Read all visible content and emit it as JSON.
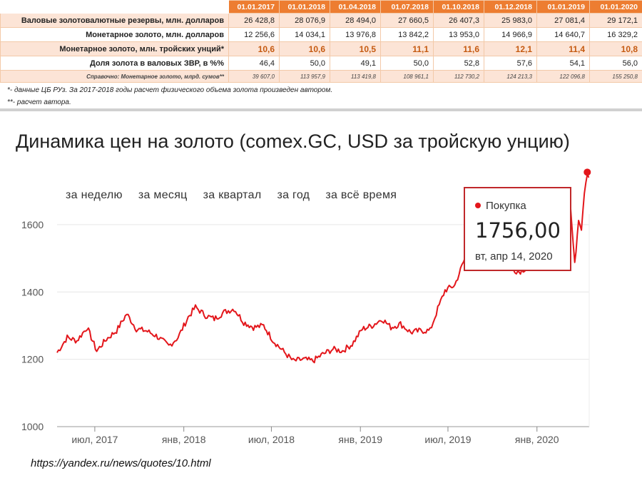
{
  "table": {
    "headers": [
      "01.01.2017",
      "01.01.2018",
      "01.04.2018",
      "01.07.2018",
      "01.10.2018",
      "01.12.2018",
      "01.01.2019",
      "01.01.2020"
    ],
    "rows": [
      {
        "label": "Валовые золотовалютные резервы, млн. долларов",
        "values": [
          "26 428,8",
          "28 076,9",
          "28 494,0",
          "27 660,5",
          "26 407,3",
          "25 983,0",
          "27 081,4",
          "29 172,1"
        ]
      },
      {
        "label": "Монетарное золото, млн. долларов",
        "values": [
          "12 256,6",
          "14 034,1",
          "13 976,8",
          "13 842,2",
          "13 953,0",
          "14 966,9",
          "14 640,7",
          "16 329,2"
        ]
      },
      {
        "label": "Монетарное золото, млн. тройских унций*",
        "values": [
          "10,6",
          "10,6",
          "10,5",
          "11,1",
          "11,6",
          "12,1",
          "11,4",
          "10,8"
        ]
      },
      {
        "label": "Доля золота в валовых ЗВР, в %%",
        "values": [
          "46,4",
          "50,0",
          "49,1",
          "50,0",
          "52,8",
          "57,6",
          "54,1",
          "56,0"
        ]
      },
      {
        "label": "Справочно: Монетарное золото, млрд. сумов**",
        "values": [
          "39 607,0",
          "113 957,9",
          "113 419,8",
          "108 961,1",
          "112 730,2",
          "124 213,3",
          "122 096,8",
          "155 250,8"
        ]
      }
    ],
    "footnotes": [
      "*- данные ЦБ РУз. За 2017-2018 годы расчет физического объема золота произведен автором.",
      "**- расчет автора."
    ]
  },
  "chart_header": "Динамика цен на золото (comex.GC, USD за тройскую унцию)",
  "period_tabs": [
    "за неделю",
    "за месяц",
    "за квартал",
    "за год",
    "за всё время"
  ],
  "tooltip": {
    "series": "Покупка",
    "value": "1756,00",
    "date": "вт, апр 14, 2020"
  },
  "source": "https://yandex.ru/news/quotes/10.html",
  "chart_data": {
    "type": "line",
    "x_ticks": [
      "июл, 2017",
      "янв, 2018",
      "июл, 2018",
      "янв, 2019",
      "июл, 2019",
      "янв, 2020"
    ],
    "y_ticks": [
      1000,
      1200,
      1400,
      1600
    ],
    "ylim": [
      1000,
      1780
    ],
    "xlim": [
      "2017-04-14",
      "2020-04-18"
    ],
    "line_color": "#e3161b",
    "series": [
      {
        "name": "Покупка",
        "x": [
          "2017-04-14",
          "2017-05-05",
          "2017-05-25",
          "2017-06-15",
          "2017-07-05",
          "2017-07-25",
          "2017-08-15",
          "2017-09-05",
          "2017-09-25",
          "2017-10-15",
          "2017-11-05",
          "2017-12-01",
          "2017-12-20",
          "2018-01-10",
          "2018-01-25",
          "2018-02-15",
          "2018-03-05",
          "2018-03-25",
          "2018-04-15",
          "2018-05-05",
          "2018-05-25",
          "2018-06-15",
          "2018-07-05",
          "2018-07-25",
          "2018-08-15",
          "2018-09-05",
          "2018-09-25",
          "2018-10-15",
          "2018-11-05",
          "2018-11-25",
          "2018-12-15",
          "2019-01-05",
          "2019-01-25",
          "2019-02-15",
          "2019-03-05",
          "2019-03-25",
          "2019-04-15",
          "2019-05-05",
          "2019-05-25",
          "2019-06-10",
          "2019-06-25",
          "2019-07-15",
          "2019-08-05",
          "2019-08-25",
          "2019-09-05",
          "2019-09-25",
          "2019-10-15",
          "2019-11-05",
          "2019-11-25",
          "2019-12-15",
          "2020-01-08",
          "2020-01-25",
          "2020-02-10",
          "2020-02-24",
          "2020-03-09",
          "2020-03-19",
          "2020-03-27",
          "2020-04-02",
          "2020-04-08",
          "2020-04-14",
          "2020-04-17"
        ],
        "y": [
          1220,
          1265,
          1255,
          1295,
          1225,
          1260,
          1285,
          1335,
          1290,
          1285,
          1270,
          1240,
          1265,
          1325,
          1355,
          1330,
          1320,
          1340,
          1350,
          1310,
          1295,
          1300,
          1255,
          1225,
          1195,
          1200,
          1195,
          1215,
          1230,
          1225,
          1245,
          1290,
          1300,
          1320,
          1295,
          1305,
          1280,
          1285,
          1285,
          1350,
          1405,
          1420,
          1500,
          1535,
          1560,
          1500,
          1490,
          1470,
          1460,
          1475,
          1550,
          1565,
          1580,
          1650,
          1680,
          1480,
          1620,
          1590,
          1700,
          1756,
          1740
        ]
      }
    ]
  }
}
